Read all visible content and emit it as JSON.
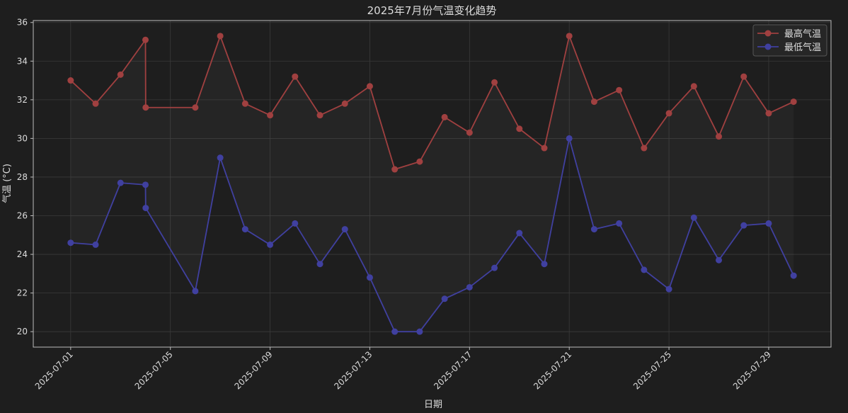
{
  "chart_data": {
    "type": "line",
    "title": "2025年7月份气温变化趋势",
    "xlabel": "日期",
    "ylabel": "气温 (°C)",
    "ylim": [
      19.2,
      36.1
    ],
    "yticks": [
      20,
      22,
      24,
      26,
      28,
      30,
      32,
      34,
      36
    ],
    "xticks": [
      "2025-07-01",
      "2025-07-05",
      "2025-07-09",
      "2025-07-13",
      "2025-07-17",
      "2025-07-21",
      "2025-07-25",
      "2025-07-29"
    ],
    "grid": true,
    "legend_position": "top-right",
    "background_color": "#1e1e1e",
    "fill_between": true,
    "x": [
      "2025-07-01",
      "2025-07-02",
      "2025-07-03",
      "2025-07-04",
      "2025-07-04",
      "2025-07-06",
      "2025-07-07",
      "2025-07-08",
      "2025-07-09",
      "2025-07-10",
      "2025-07-11",
      "2025-07-12",
      "2025-07-13",
      "2025-07-14",
      "2025-07-15",
      "2025-07-16",
      "2025-07-17",
      "2025-07-18",
      "2025-07-19",
      "2025-07-20",
      "2025-07-21",
      "2025-07-22",
      "2025-07-23",
      "2025-07-24",
      "2025-07-25",
      "2025-07-26",
      "2025-07-27",
      "2025-07-28",
      "2025-07-29",
      "2025-07-30"
    ],
    "series": [
      {
        "name": "最高气温",
        "color": "#a04040",
        "values": [
          33.0,
          31.8,
          33.3,
          35.1,
          31.6,
          31.6,
          35.3,
          31.8,
          31.2,
          33.2,
          31.2,
          31.8,
          32.7,
          28.4,
          28.8,
          31.1,
          30.3,
          32.9,
          30.5,
          29.5,
          35.3,
          31.9,
          32.5,
          29.5,
          31.3,
          32.7,
          30.1,
          33.2,
          31.3,
          31.9
        ]
      },
      {
        "name": "最低气温",
        "color": "#4040a0",
        "values": [
          24.6,
          24.5,
          27.7,
          27.6,
          26.4,
          22.1,
          29.0,
          25.3,
          24.5,
          25.6,
          23.5,
          25.3,
          22.8,
          20.0,
          20.0,
          21.7,
          22.3,
          23.3,
          25.1,
          23.5,
          30.0,
          25.3,
          25.6,
          23.2,
          22.2,
          25.9,
          23.7,
          25.5,
          25.6,
          22.9
        ]
      }
    ]
  }
}
